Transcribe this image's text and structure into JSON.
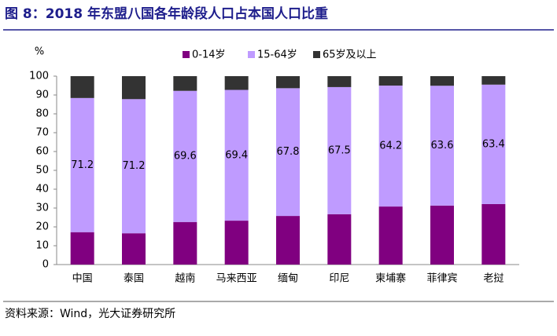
{
  "chart_data": {
    "type": "stacked_bar",
    "title": "图 8：2018 年东盟八国各年龄段人口占本国人口比重",
    "y_unit": "%",
    "source": "资料来源：Wind，光大证券研究所",
    "categories": [
      "中国",
      "泰国",
      "越南",
      "马来西亚",
      "缅甸",
      "印尼",
      "柬埔寨",
      "菲律宾",
      "老挝"
    ],
    "series": [
      {
        "name": "0-14岁",
        "color": "#800080",
        "values": [
          17.2,
          16.6,
          22.6,
          23.3,
          25.8,
          26.7,
          30.8,
          31.3,
          32.1
        ]
      },
      {
        "name": "15-64岁",
        "color": "#bf9bff",
        "values": [
          71.2,
          71.2,
          69.6,
          69.4,
          67.8,
          67.5,
          64.2,
          63.6,
          63.4
        ],
        "labeled": true
      },
      {
        "name": "65岁及以上",
        "color": "#333333",
        "values": [
          11.6,
          12.2,
          7.8,
          7.3,
          6.4,
          5.8,
          5.0,
          5.1,
          4.5
        ]
      }
    ],
    "ylim": [
      0,
      100
    ],
    "yticks": [
      0,
      10,
      20,
      30,
      40,
      50,
      60,
      70,
      80,
      90,
      100
    ]
  }
}
